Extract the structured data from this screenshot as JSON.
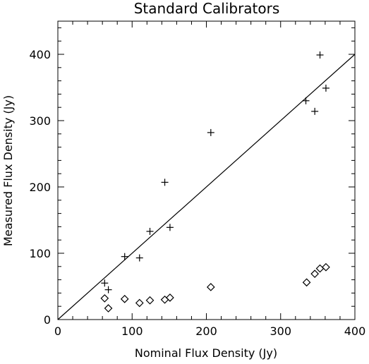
{
  "chart_data": {
    "type": "scatter",
    "title": "Standard Calibrators",
    "xlabel": "Nominal Flux Density (Jy)",
    "ylabel": "Measured Flux Density (Jy)",
    "xlim": [
      0,
      400
    ],
    "ylim": [
      0,
      450
    ],
    "xticks": [
      0,
      100,
      200,
      300,
      400
    ],
    "yticks": [
      0,
      100,
      200,
      300,
      400
    ],
    "grid": false,
    "reference_line": {
      "x": [
        0,
        400
      ],
      "y": [
        0,
        400
      ]
    },
    "series": [
      {
        "marker": "plus",
        "points": [
          [
            63,
            55
          ],
          [
            68,
            45
          ],
          [
            90,
            95
          ],
          [
            110,
            93
          ],
          [
            124,
            133
          ],
          [
            144,
            207
          ],
          [
            151,
            139
          ],
          [
            206,
            282
          ],
          [
            334,
            330
          ],
          [
            346,
            314
          ],
          [
            353,
            399
          ],
          [
            361,
            349
          ]
        ]
      },
      {
        "marker": "diamond",
        "points": [
          [
            63,
            32
          ],
          [
            68,
            17
          ],
          [
            90,
            31
          ],
          [
            110,
            25
          ],
          [
            124,
            29
          ],
          [
            144,
            30
          ],
          [
            151,
            33
          ],
          [
            206,
            49
          ],
          [
            335,
            56
          ],
          [
            346,
            69
          ],
          [
            353,
            77
          ],
          [
            361,
            79
          ]
        ]
      }
    ]
  }
}
